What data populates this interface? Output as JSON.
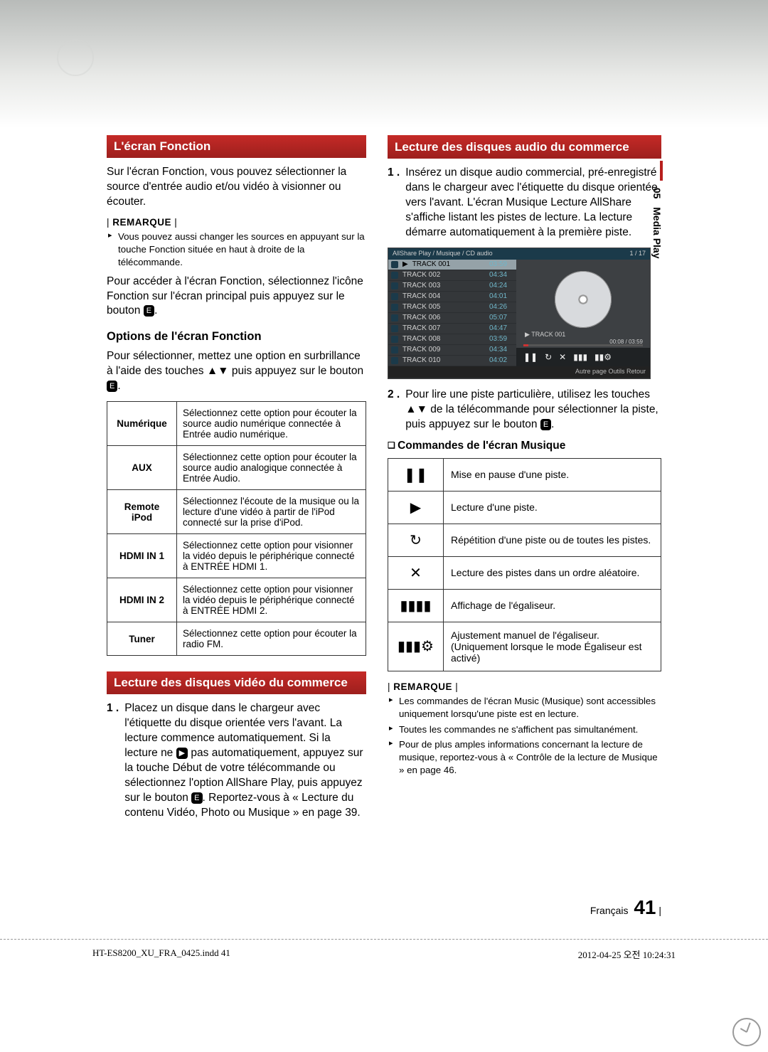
{
  "sideTab": {
    "chapter": "05",
    "label": "Media Play"
  },
  "left": {
    "sec1": {
      "title": "L'écran Fonction",
      "p1": "Sur l'écran Fonction, vous pouvez sélectionner la source d'entrée audio et/ou vidéo à visionner ou écouter.",
      "remarque": "REMARQUE",
      "note1": "Vous pouvez aussi changer les sources en appuyant sur la touche Fonction située en haut à droite de la télécommande.",
      "p2a": "Pour accéder à l'écran Fonction, sélectionnez l'icône Fonction sur l'écran principal puis appuyez sur le bouton ",
      "p2b": ".",
      "optionsHeading": "Options de l'écran Fonction",
      "p3a": "Pour sélectionner, mettez une option en surbrillance à l'aide des touches ▲▼ puis appuyez sur le bouton ",
      "p3b": ".",
      "table": [
        {
          "k": "Numérique",
          "v": "Sélectionnez cette option pour écouter la source audio numérique connectée à Entrée audio numérique."
        },
        {
          "k": "AUX",
          "v": "Sélectionnez cette option pour écouter la source audio analogique connectée à Entrée Audio."
        },
        {
          "k": "Remote iPod",
          "v": "Sélectionnez l'écoute de la musique ou la lecture d'une vidéo à partir de l'iPod connecté sur la prise d'iPod."
        },
        {
          "k": "HDMI IN 1",
          "v": "Sélectionnez cette option pour visionner la vidéo depuis le périphérique connecté à ENTRÉE HDMI 1."
        },
        {
          "k": "HDMI IN 2",
          "v": "Sélectionnez cette option pour visionner la vidéo depuis le périphérique connecté à ENTRÉE HDMI 2."
        },
        {
          "k": "Tuner",
          "v": "Sélectionnez cette option pour écouter la radio FM."
        }
      ]
    },
    "sec2": {
      "title": "Lecture des disques vidéo du commerce",
      "step1num": "1 .",
      "step1a": "Placez un disque dans le chargeur avec l'étiquette du disque orientée vers l'avant. La lecture commence automatiquement.\nSi la lecture ne ",
      "step1b": " pas automatiquement, appuyez sur la touche Début de votre télécommande ou sélectionnez l'option AllShare Play, puis appuyez sur le bouton ",
      "step1c": ". Reportez-vous à « Lecture du contenu Vidéo, Photo ou Musique » en page 39."
    }
  },
  "right": {
    "sec1": {
      "title": "Lecture des disques audio du commerce",
      "step1num": "1 .",
      "step1": "Insérez un disque audio commercial, pré-enregistré dans le chargeur avec l'étiquette du disque orientée vers l'avant. L'écran Musique Lecture AllShare s'affiche listant les pistes de lecture. La lecture démarre automatiquement à la première piste.",
      "step2num": "2 .",
      "step2a": "Pour lire une piste particulière, utilisez les touches ▲▼ de la télécommande pour sélectionner la piste, puis appuyez sur le bouton ",
      "step2b": ".",
      "cmdHeading": "Commandes de l'écran Musique",
      "cmd": [
        {
          "icon": "❚❚",
          "v": "Mise en pause d'une piste."
        },
        {
          "icon": "▶",
          "v": "Lecture d'une piste."
        },
        {
          "icon": "↻",
          "v": "Répétition d'une piste ou de toutes les pistes."
        },
        {
          "icon": "✕",
          "v": "Lecture des pistes dans un ordre aléatoire."
        },
        {
          "icon": "▮▮▮▮",
          "v": "Affichage de l'égaliseur."
        },
        {
          "icon": "▮▮▮⚙",
          "v": "Ajustement manuel de l'égaliseur. (Uniquement lorsque le mode Égaliseur est activé)"
        }
      ],
      "remarque": "REMARQUE",
      "notes": [
        "Les commandes de l'écran Music (Musique) sont accessibles uniquement lorsqu'une piste est en lecture.",
        "Toutes les commandes ne s'affichent pas simultanément.",
        "Pour de plus amples informations concernant la lecture de musique, reportez-vous à « Contrôle de la lecture de Musique » en page 46."
      ]
    }
  },
  "allshare": {
    "hdrLeft": "AllShare Play / Musique /   CD audio",
    "hdrRight": "1 / 17",
    "tracks": [
      {
        "n": "TRACK 001",
        "d": "03:59",
        "sel": true
      },
      {
        "n": "TRACK 002",
        "d": "04:34"
      },
      {
        "n": "TRACK 003",
        "d": "04:24"
      },
      {
        "n": "TRACK 004",
        "d": "04:01"
      },
      {
        "n": "TRACK 005",
        "d": "04:26"
      },
      {
        "n": "TRACK 006",
        "d": "05:07"
      },
      {
        "n": "TRACK 007",
        "d": "04:47"
      },
      {
        "n": "TRACK 008",
        "d": "03:59"
      },
      {
        "n": "TRACK 009",
        "d": "04:34"
      },
      {
        "n": "TRACK 010",
        "d": "04:02"
      }
    ],
    "nowPlaying": "TRACK 001",
    "progress": "00:08 / 03:59",
    "footer": "Autre page   Outils   Retour"
  },
  "footer": {
    "lang": "Français",
    "pageNum": "41"
  },
  "printFooter": {
    "left": "HT-ES8200_XU_FRA_0425.indd   41",
    "right": "2012-04-25   오전 10:24:31"
  }
}
